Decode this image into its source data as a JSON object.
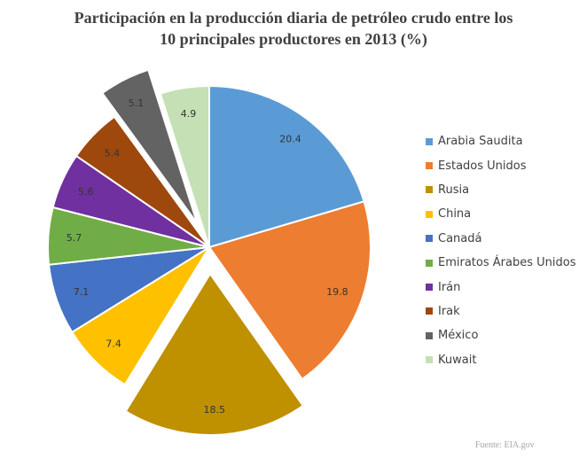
{
  "chart_data": {
    "type": "pie",
    "title_lines": [
      "Participación en la producción diaria de petróleo crudo entre los",
      "10 principales productores en 2013 (%)"
    ],
    "categories": [
      "Arabia Saudita",
      "Estados Unidos",
      "Rusia",
      "China",
      "Canadá",
      "Emiratos Árabes Unidos",
      "Irán",
      "Irak",
      "México",
      "Kuwait"
    ],
    "values": [
      20.4,
      19.8,
      18.5,
      7.4,
      7.1,
      5.7,
      5.6,
      5.4,
      5.1,
      4.9
    ],
    "value_labels": [
      "20.4",
      "19.8",
      "18.5",
      "7.4",
      "7.1",
      "5.7",
      "5.6",
      "5.4",
      "5.1",
      "4.9"
    ],
    "colors": [
      "#5b9bd5",
      "#ed7d31",
      "#bf9000",
      "#ffc000",
      "#4472c4",
      "#70ad47",
      "#7030a0",
      "#9e480e",
      "#636363",
      "#c5e0b4"
    ],
    "exploded": [
      "Rusia",
      "México"
    ],
    "start_angle": "12 o'clock, clockwise",
    "legend_position": "right"
  },
  "source": "Fuente: EIA.gov"
}
